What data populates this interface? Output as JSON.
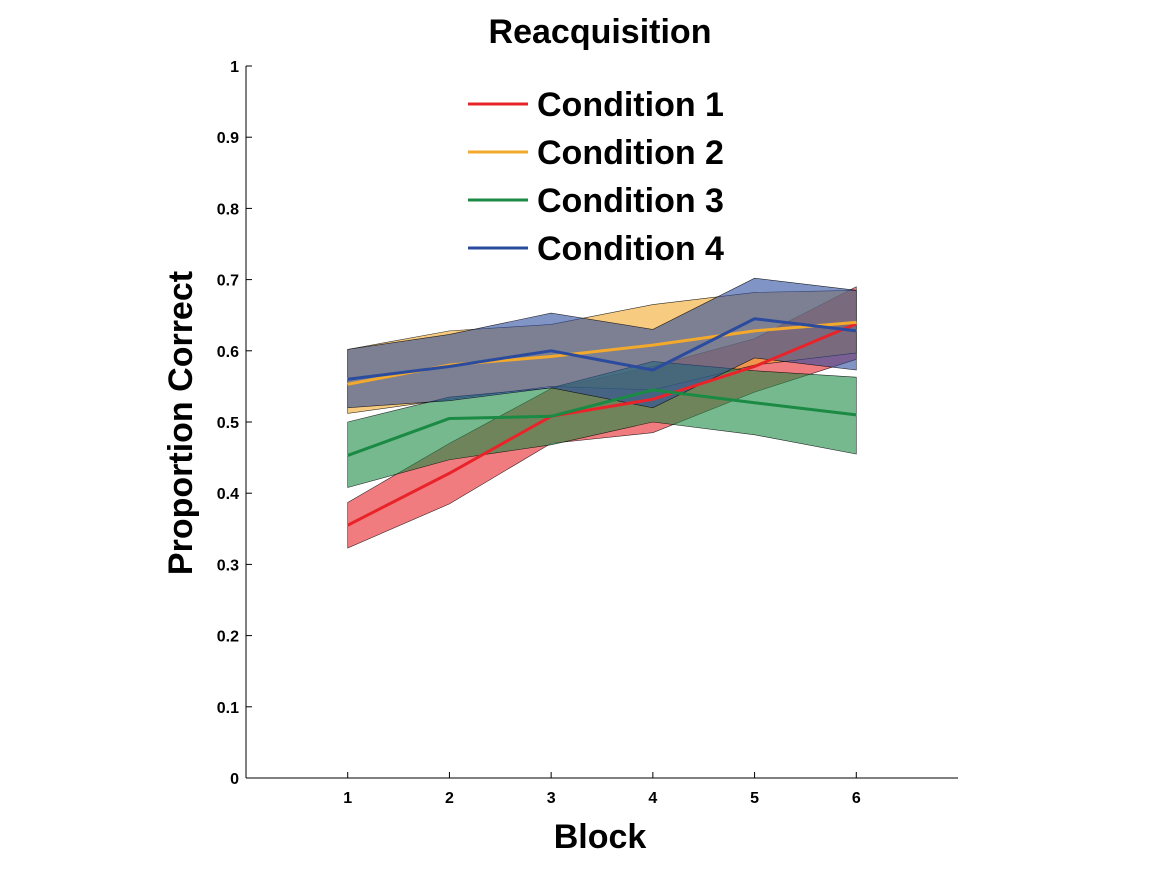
{
  "chart_data": {
    "type": "line",
    "title": "Reacquisition",
    "xlabel": "Block",
    "ylabel": "Proportion Correct",
    "x": [
      1,
      2,
      3,
      4,
      5,
      6
    ],
    "xticks": [
      "1",
      "2",
      "3",
      "4",
      "5",
      "6"
    ],
    "xlim": [
      0,
      7
    ],
    "ylim": [
      0,
      1
    ],
    "yticks": [
      "0",
      "0.1",
      "0.2",
      "0.3",
      "0.4",
      "0.5",
      "0.6",
      "0.7",
      "0.8",
      "0.9",
      "1"
    ],
    "grid": false,
    "legend_position": "top",
    "series": [
      {
        "name": "Condition 1",
        "color": "#e8242a",
        "values": [
          0.355,
          0.428,
          0.508,
          0.532,
          0.578,
          0.638
        ],
        "lower": [
          0.323,
          0.385,
          0.47,
          0.485,
          0.542,
          0.588
        ],
        "upper": [
          0.387,
          0.47,
          0.547,
          0.578,
          0.617,
          0.69
        ]
      },
      {
        "name": "Condition 2",
        "color": "#f2a92c",
        "values": [
          0.553,
          0.58,
          0.592,
          0.608,
          0.628,
          0.64
        ],
        "lower": [
          0.512,
          0.532,
          0.55,
          0.545,
          0.58,
          0.597
        ],
        "upper": [
          0.602,
          0.628,
          0.637,
          0.665,
          0.682,
          0.685
        ]
      },
      {
        "name": "Condition 3",
        "color": "#1a8a44",
        "values": [
          0.453,
          0.505,
          0.508,
          0.545,
          0.527,
          0.51
        ],
        "lower": [
          0.408,
          0.447,
          0.468,
          0.5,
          0.482,
          0.455
        ],
        "upper": [
          0.5,
          0.535,
          0.548,
          0.585,
          0.572,
          0.563
        ]
      },
      {
        "name": "Condition 4",
        "color": "#2b4c9e",
        "values": [
          0.56,
          0.578,
          0.6,
          0.573,
          0.645,
          0.628
        ],
        "lower": [
          0.52,
          0.53,
          0.548,
          0.52,
          0.59,
          0.573
        ],
        "upper": [
          0.602,
          0.623,
          0.653,
          0.63,
          0.702,
          0.685
        ]
      }
    ]
  }
}
